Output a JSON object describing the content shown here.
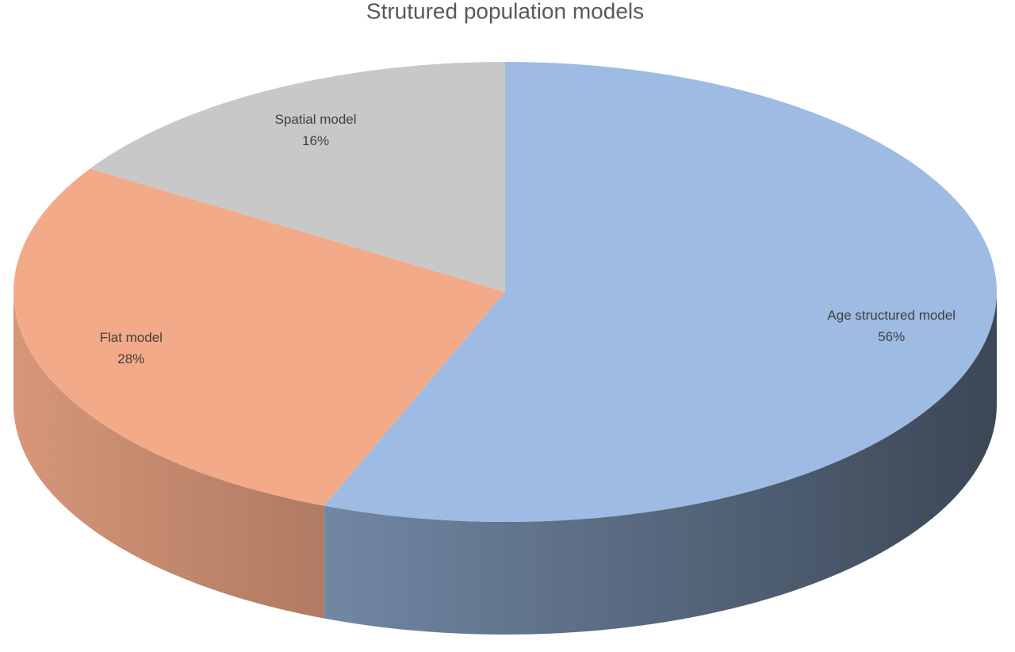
{
  "chart_data": {
    "type": "pie3d",
    "title": "Strutured population models",
    "categories": [
      "Age structured model",
      "Flat model",
      "Spatial model"
    ],
    "values": [
      56,
      28,
      16
    ],
    "value_labels": [
      "56%",
      "28%",
      "16%"
    ],
    "colors": [
      "#9dbbe3",
      "#f3aa88",
      "#c8c8c8"
    ]
  }
}
